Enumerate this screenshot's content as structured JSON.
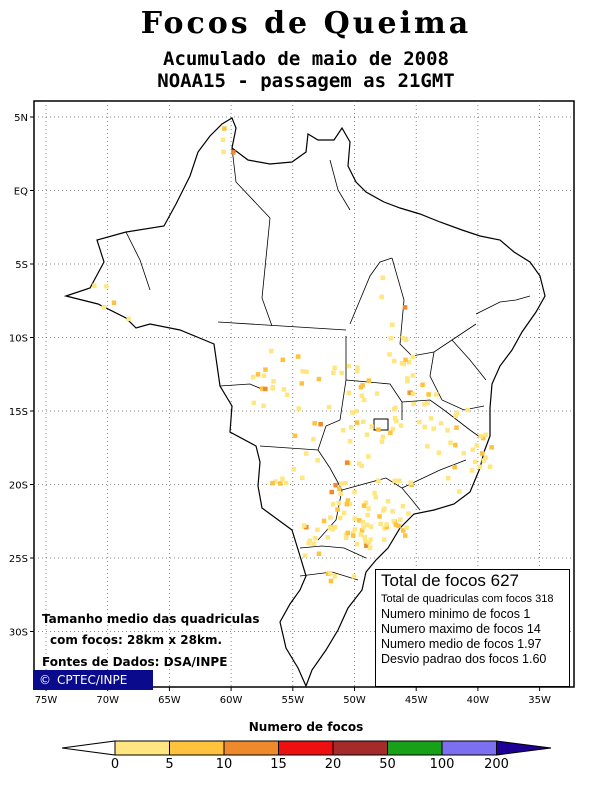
{
  "title": "Focos de Queima",
  "subtitle_1": "Acumulado de maio de 2008",
  "subtitle_2": "NOAA15 - passagem as 21GMT",
  "lat_labels": [
    "5N",
    "EQ",
    "5S",
    "10S",
    "15S",
    "20S",
    "25S",
    "30S"
  ],
  "lon_labels": [
    "75W",
    "70W",
    "65W",
    "60W",
    "55W",
    "50W",
    "45W",
    "40W",
    "35W"
  ],
  "stats": {
    "total": "Total de focos 627",
    "cells": "Total de quadriculas com focos 318",
    "min": "Numero minimo de focos 1",
    "max": "Numero maximo de focos 14",
    "mean": "Numero medio de focos 1.97",
    "std": "Desvio padrao dos focos 1.60"
  },
  "notes": {
    "size_1": "Tamanho medio das quadriculas",
    "size_2": "com focos: 28km x 28km.",
    "source": "Fontes de Dados: DSA/INPE",
    "credit": "CPTEC/INPE",
    "credit_icon": "copyright-icon"
  },
  "legend": {
    "title": "Numero de focos",
    "labels": [
      "0",
      "5",
      "10",
      "15",
      "20",
      "50",
      "100",
      "200"
    ],
    "colors": [
      "#ffe680",
      "#ffc23c",
      "#ee8a2c",
      "#ee1010",
      "#a52a2a",
      "#18a018",
      "#7d70f0",
      "#1e0096"
    ]
  }
}
